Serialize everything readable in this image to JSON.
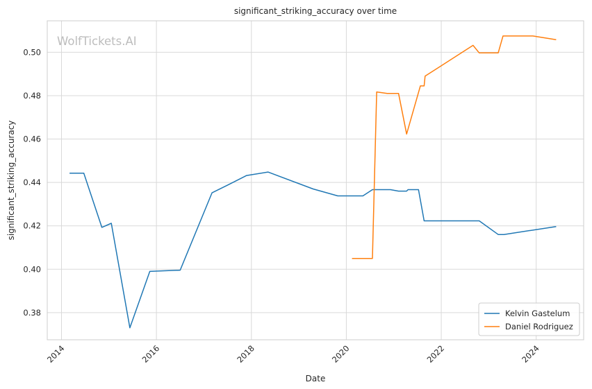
{
  "chart_data": {
    "type": "line",
    "title": "significant_striking_accuracy over time",
    "xlabel": "Date",
    "ylabel": "significant_striking_accuracy",
    "xlim": [
      2013.7,
      2025.0
    ],
    "ylim": [
      0.3675,
      0.5145
    ],
    "x_ticks": [
      2014,
      2016,
      2018,
      2020,
      2022,
      2024
    ],
    "x_tick_labels": [
      "2014",
      "2016",
      "2018",
      "2020",
      "2022",
      "2024"
    ],
    "y_ticks": [
      0.38,
      0.4,
      0.42,
      0.44,
      0.46,
      0.48,
      0.5
    ],
    "y_tick_labels": [
      "0.38",
      "0.40",
      "0.42",
      "0.44",
      "0.46",
      "0.48",
      "0.50"
    ],
    "grid": true,
    "legend_position": "bottom-right",
    "watermark": "WolfTickets.AI",
    "series": [
      {
        "name": "Kelvin Gastelum",
        "color": "#1f77b4",
        "x": [
          2014.17,
          2014.47,
          2014.85,
          2015.05,
          2015.44,
          2015.86,
          2016.5,
          2017.17,
          2017.5,
          2017.9,
          2018.35,
          2019.3,
          2019.82,
          2020.35,
          2020.55,
          2020.93,
          2021.1,
          2021.27,
          2021.3,
          2021.52,
          2021.64,
          2022.8,
          2023.2,
          2023.32,
          2024.42
        ],
        "y": [
          0.4443,
          0.4443,
          0.4193,
          0.4212,
          0.373,
          0.399,
          0.3996,
          0.4352,
          0.4388,
          0.4432,
          0.4448,
          0.437,
          0.4338,
          0.4338,
          0.4367,
          0.4367,
          0.436,
          0.436,
          0.4367,
          0.4367,
          0.4223,
          0.4223,
          0.416,
          0.416,
          0.4197
        ]
      },
      {
        "name": "Daniel Rodriguez",
        "color": "#ff7f0e",
        "x": [
          2020.12,
          2020.55,
          2020.64,
          2020.86,
          2021.1,
          2021.27,
          2021.56,
          2021.64,
          2021.66,
          2022.67,
          2022.8,
          2023.2,
          2023.3,
          2023.93,
          2024.42
        ],
        "y": [
          0.405,
          0.405,
          0.4817,
          0.481,
          0.481,
          0.4623,
          0.4845,
          0.4845,
          0.489,
          0.5032,
          0.4997,
          0.4997,
          0.5075,
          0.5075,
          0.5058
        ]
      }
    ]
  }
}
